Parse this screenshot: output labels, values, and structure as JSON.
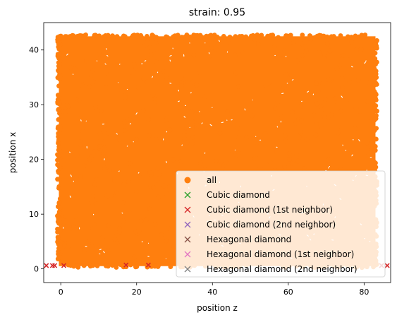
{
  "chart_data": {
    "type": "scatter",
    "title": "strain: 0.95",
    "xlabel": "position z",
    "ylabel": "position x",
    "xlim": [
      -4.5,
      87
    ],
    "ylim": [
      -2.5,
      45
    ],
    "xticks": [
      0,
      20,
      40,
      60,
      80
    ],
    "yticks": [
      0,
      10,
      20,
      30,
      40
    ],
    "grid": false,
    "legend_position": "lower-right",
    "series": [
      {
        "name": "all",
        "marker": "o",
        "color": "#ff7f0e",
        "x_range": [
          -0.5,
          83
        ],
        "y_range": [
          0.5,
          42.5
        ]
      },
      {
        "name": "Cubic diamond",
        "marker": "x",
        "color": "#2ca02c",
        "x": [],
        "y": []
      },
      {
        "name": "Cubic diamond (1st neighbor)",
        "marker": "x",
        "color": "#d62728",
        "x": [
          -3.8,
          -2.2,
          -1.6,
          0.8,
          17.2,
          23.1,
          84.6,
          86.1
        ],
        "y": [
          0.6,
          0.6,
          0.6,
          0.6,
          0.7,
          0.7,
          0.6,
          0.6
        ]
      },
      {
        "name": "Cubic diamond (2nd neighbor)",
        "marker": "x",
        "color": "#9467bd",
        "x": [],
        "y": []
      },
      {
        "name": "Hexagonal diamond",
        "marker": "x",
        "color": "#8c564b",
        "x": [],
        "y": []
      },
      {
        "name": "Hexagonal diamond (1st neighbor)",
        "marker": "x",
        "color": "#e377c2",
        "x": [],
        "y": []
      },
      {
        "name": "Hexagonal diamond (2nd neighbor)",
        "marker": "x",
        "color": "#7f7f7f",
        "x": [],
        "y": []
      }
    ]
  }
}
